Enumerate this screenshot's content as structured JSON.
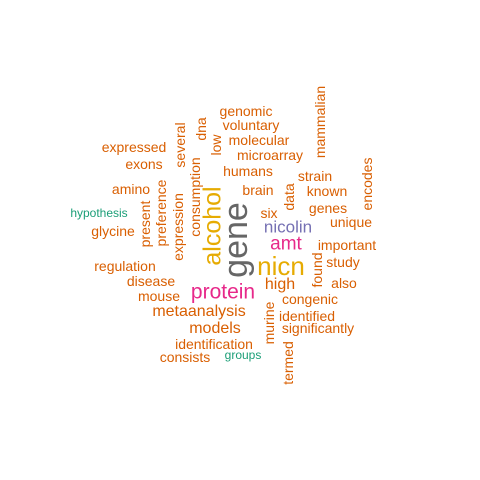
{
  "colors": {
    "orange": "#d95f02",
    "gray": "#666666",
    "gold": "#e6ab02",
    "magenta": "#e7298a",
    "purple": "#7570b3",
    "teal": "#1b9e77"
  },
  "words": [
    {
      "text": "gene",
      "color": "gray"
    },
    {
      "text": "alcohol",
      "color": "gold"
    },
    {
      "text": "nicn",
      "color": "gold"
    },
    {
      "text": "protein",
      "color": "magenta"
    },
    {
      "text": "amt",
      "color": "magenta"
    },
    {
      "text": "nicolin",
      "color": "purple"
    },
    {
      "text": "hypothesis",
      "color": "teal"
    },
    {
      "text": "groups",
      "color": "teal"
    },
    {
      "text": "genomic",
      "color": "orange"
    },
    {
      "text": "voluntary",
      "color": "orange"
    },
    {
      "text": "molecular",
      "color": "orange"
    },
    {
      "text": "microarray",
      "color": "orange"
    },
    {
      "text": "humans",
      "color": "orange"
    },
    {
      "text": "brain",
      "color": "orange"
    },
    {
      "text": "strain",
      "color": "orange"
    },
    {
      "text": "known",
      "color": "orange"
    },
    {
      "text": "genes",
      "color": "orange"
    },
    {
      "text": "unique",
      "color": "orange"
    },
    {
      "text": "important",
      "color": "orange"
    },
    {
      "text": "study",
      "color": "orange"
    },
    {
      "text": "also",
      "color": "orange"
    },
    {
      "text": "high",
      "color": "orange"
    },
    {
      "text": "six",
      "color": "orange"
    },
    {
      "text": "congenic",
      "color": "orange"
    },
    {
      "text": "identified",
      "color": "orange"
    },
    {
      "text": "significantly",
      "color": "orange"
    },
    {
      "text": "expressed",
      "color": "orange"
    },
    {
      "text": "exons",
      "color": "orange"
    },
    {
      "text": "amino",
      "color": "orange"
    },
    {
      "text": "glycine",
      "color": "orange"
    },
    {
      "text": "regulation",
      "color": "orange"
    },
    {
      "text": "disease",
      "color": "orange"
    },
    {
      "text": "mouse",
      "color": "orange"
    },
    {
      "text": "metaanalysis",
      "color": "orange"
    },
    {
      "text": "models",
      "color": "orange"
    },
    {
      "text": "identification",
      "color": "orange"
    },
    {
      "text": "consists",
      "color": "orange"
    },
    {
      "text": "mammalian",
      "color": "orange"
    },
    {
      "text": "encodes",
      "color": "orange"
    },
    {
      "text": "several",
      "color": "orange"
    },
    {
      "text": "dna",
      "color": "orange"
    },
    {
      "text": "low",
      "color": "orange"
    },
    {
      "text": "consumption",
      "color": "orange"
    },
    {
      "text": "preference",
      "color": "orange"
    },
    {
      "text": "present",
      "color": "orange"
    },
    {
      "text": "expression",
      "color": "orange"
    },
    {
      "text": "data",
      "color": "orange"
    },
    {
      "text": "found",
      "color": "orange"
    },
    {
      "text": "murine",
      "color": "orange"
    },
    {
      "text": "termed",
      "color": "orange"
    }
  ]
}
